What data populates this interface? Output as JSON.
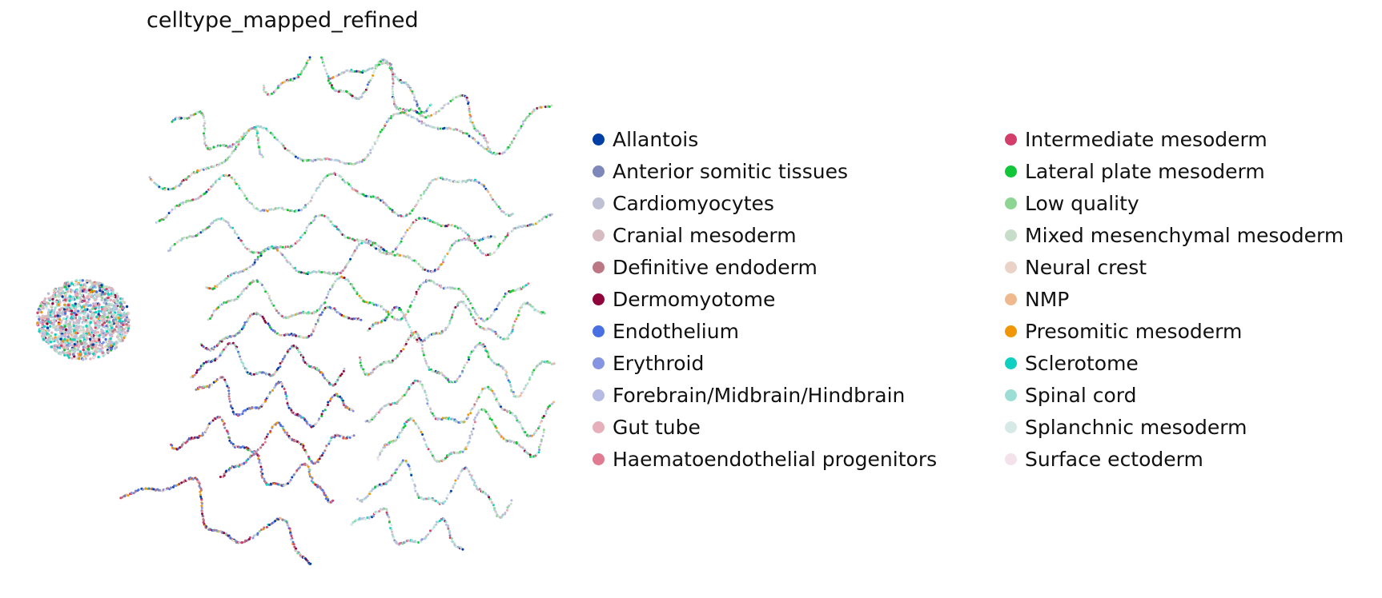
{
  "chart_data": {
    "type": "scatter",
    "title": "celltype_mapped_refined",
    "xlabel": "",
    "ylabel": "",
    "grid": false,
    "axes_visible": false,
    "legend_placement": "right",
    "legend_columns": 2,
    "point_distribution": "dense compact blob on the left plus many winding thread-like strands to the right",
    "categories": [
      {
        "name": "Allantois",
        "color": "#023fa5"
      },
      {
        "name": "Anterior somitic tissues",
        "color": "#7d87b9"
      },
      {
        "name": "Cardiomyocytes",
        "color": "#bec1d4"
      },
      {
        "name": "Cranial mesoderm",
        "color": "#d6bcc0"
      },
      {
        "name": "Definitive endoderm",
        "color": "#bb7784"
      },
      {
        "name": "Dermomyotome",
        "color": "#8e063b"
      },
      {
        "name": "Endothelium",
        "color": "#4a6fe3"
      },
      {
        "name": "Erythroid",
        "color": "#8595e1"
      },
      {
        "name": "Forebrain/Midbrain/Hindbrain",
        "color": "#b5bbe3"
      },
      {
        "name": "Gut tube",
        "color": "#e6afb9"
      },
      {
        "name": "Haematoendothelial progenitors",
        "color": "#e07b91"
      },
      {
        "name": "Intermediate mesoderm",
        "color": "#d33f6a"
      },
      {
        "name": "Lateral plate mesoderm",
        "color": "#11c638"
      },
      {
        "name": "Low quality",
        "color": "#8dd593"
      },
      {
        "name": "Mixed mesenchymal mesoderm",
        "color": "#c6dec7"
      },
      {
        "name": "Neural crest",
        "color": "#ead3c6"
      },
      {
        "name": "NMP",
        "color": "#f0b98d"
      },
      {
        "name": "Presomitic mesoderm",
        "color": "#ef9708"
      },
      {
        "name": "Sclerotome",
        "color": "#0fcfc0"
      },
      {
        "name": "Spinal cord",
        "color": "#9cded6"
      },
      {
        "name": "Splanchnic mesoderm",
        "color": "#d5eae7"
      },
      {
        "name": "Surface ectoderm",
        "color": "#f3e1eb"
      }
    ]
  }
}
